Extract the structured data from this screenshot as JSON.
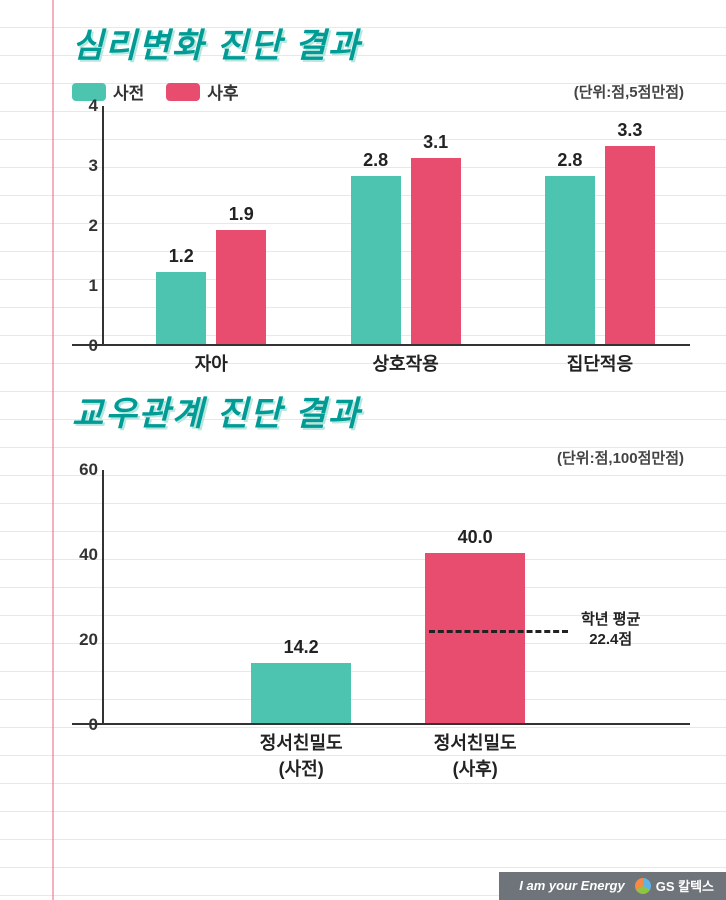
{
  "colors": {
    "before": "#4cc4b0",
    "after": "#e84c6e",
    "axis": "#333333",
    "text": "#222222",
    "titleColor": "#009b94",
    "titleShadow": "#b6e6df",
    "gridLine": "#e8e8ea",
    "marginLine": "#f06b8a",
    "footerBg": "#6f747a"
  },
  "chart1": {
    "title": "심리변화 진단 결과",
    "type": "grouped-bar",
    "legend": [
      {
        "label": "사전",
        "colorKey": "before"
      },
      {
        "label": "사후",
        "colorKey": "after"
      }
    ],
    "unit": "(단위:점,5점만점)",
    "ylim": [
      0,
      4
    ],
    "yticks": [
      0,
      1,
      2,
      3,
      4
    ],
    "plotHeight": 240,
    "plotWidth": 580,
    "barWidth": 50,
    "barGap": 10,
    "categories": [
      "자아",
      "상호작용",
      "집단적응"
    ],
    "groupCenters": [
      0.185,
      0.52,
      0.855
    ],
    "series": [
      {
        "key": "before",
        "values": [
          1.2,
          2.8,
          2.8
        ]
      },
      {
        "key": "after",
        "values": [
          1.9,
          3.1,
          3.3
        ]
      }
    ]
  },
  "chart2": {
    "title": "교우관계 진단 결과",
    "type": "bar",
    "unit": "(단위:점,100점만점)",
    "ylim": [
      0,
      60
    ],
    "yticks": [
      0,
      20,
      40,
      60
    ],
    "plotHeight": 255,
    "plotWidth": 580,
    "barWidth": 100,
    "bars": [
      {
        "label": "정서친밀도\n(사전)",
        "value": 14.2,
        "display": "14.2",
        "colorKey": "before",
        "center": 0.34
      },
      {
        "label": "정서친밀도\n(사후)",
        "value": 40.0,
        "display": "40.0",
        "colorKey": "after",
        "center": 0.64
      }
    ],
    "reference": {
      "value": 22.4,
      "labelTop": "학년 평균",
      "labelBottom": "22.4점",
      "xStart": 0.56,
      "xEnd": 0.8,
      "labelX": 0.9
    }
  },
  "footer": {
    "slogan": "I am your Energy",
    "brand": "GS 칼텍스"
  }
}
